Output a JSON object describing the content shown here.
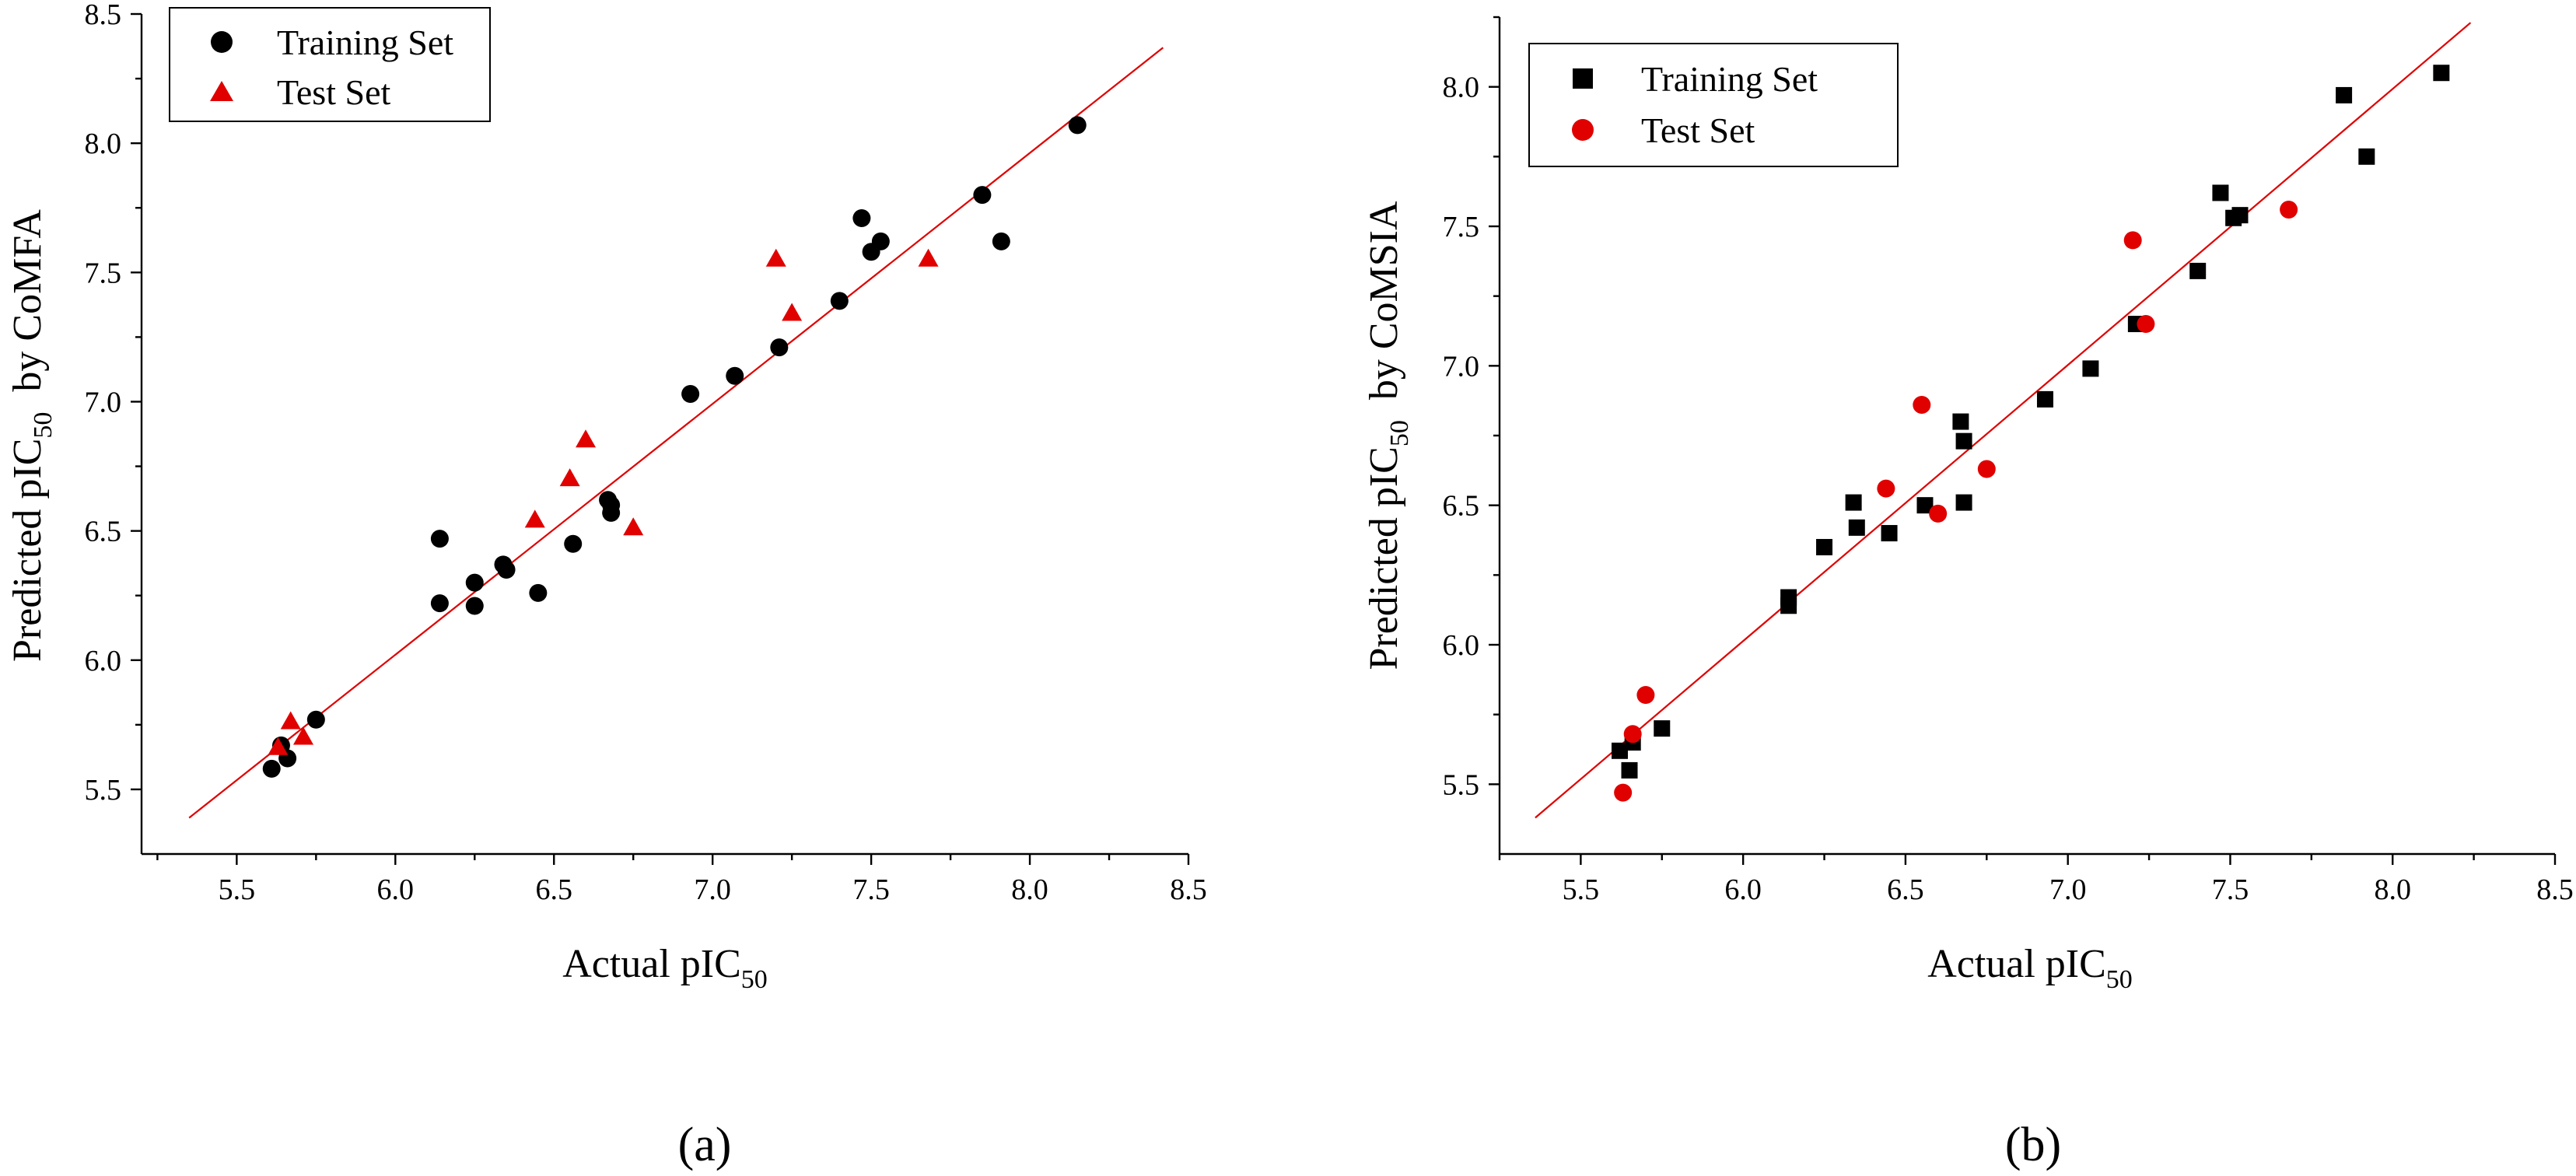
{
  "chart_data": [
    {
      "type": "scatter",
      "panel_label": "(a)",
      "xlabel": {
        "main": "Actual pIC",
        "sub": "50"
      },
      "ylabel": {
        "main": "Predicted pIC",
        "sub": "50",
        "suffix": "  by CoMFA"
      },
      "xlim": [
        5.2,
        8.5
      ],
      "ylim": [
        5.25,
        8.5
      ],
      "xticks": [
        "5.5",
        "6.0",
        "6.5",
        "7.0",
        "7.5",
        "8.0",
        "8.5"
      ],
      "yticks": [
        "5.5",
        "6.0",
        "6.5",
        "7.0",
        "7.5",
        "8.0",
        "8.5"
      ],
      "fit_line": {
        "x": [
          5.35,
          8.42
        ],
        "y": [
          5.39,
          8.37
        ],
        "color": "#e00000"
      },
      "legend_position": "top-left",
      "series": [
        {
          "name": "Training Set",
          "marker": "circle",
          "color": "#000000",
          "points": [
            [
              5.61,
              5.58
            ],
            [
              5.64,
              5.67
            ],
            [
              5.66,
              5.62
            ],
            [
              5.75,
              5.77
            ],
            [
              6.14,
              6.47
            ],
            [
              6.14,
              6.22
            ],
            [
              6.25,
              6.3
            ],
            [
              6.25,
              6.21
            ],
            [
              6.34,
              6.37
            ],
            [
              6.35,
              6.35
            ],
            [
              6.45,
              6.26
            ],
            [
              6.56,
              6.45
            ],
            [
              6.67,
              6.62
            ],
            [
              6.68,
              6.6
            ],
            [
              6.68,
              6.57
            ],
            [
              6.93,
              7.03
            ],
            [
              7.07,
              7.1
            ],
            [
              7.21,
              7.21
            ],
            [
              7.4,
              7.39
            ],
            [
              7.47,
              7.71
            ],
            [
              7.5,
              7.58
            ],
            [
              7.53,
              7.62
            ],
            [
              7.85,
              7.8
            ],
            [
              7.91,
              7.62
            ],
            [
              8.15,
              8.07
            ]
          ]
        },
        {
          "name": "Test Set",
          "marker": "triangle",
          "color": "#e00000",
          "points": [
            [
              5.63,
              5.66
            ],
            [
              5.67,
              5.76
            ],
            [
              5.71,
              5.7
            ],
            [
              6.44,
              6.54
            ],
            [
              6.55,
              6.7
            ],
            [
              6.6,
              6.85
            ],
            [
              6.75,
              6.51
            ],
            [
              7.2,
              7.55
            ],
            [
              7.25,
              7.34
            ],
            [
              7.68,
              7.55
            ]
          ]
        }
      ]
    },
    {
      "type": "scatter",
      "panel_label": "(b)",
      "xlabel": {
        "main": "Actual pIC",
        "sub": "50"
      },
      "ylabel": {
        "main": "Predicted pIC",
        "sub": "50",
        "suffix": "  by CoMSIA"
      },
      "xlim": [
        5.25,
        8.5
      ],
      "ylim": [
        5.25,
        8.25
      ],
      "xticks": [
        "5.5",
        "6.0",
        "6.5",
        "7.0",
        "7.5",
        "8.0",
        "8.5"
      ],
      "yticks": [
        "5.5",
        "6.0",
        "6.5",
        "7.0",
        "7.5",
        "8.0"
      ],
      "fit_line": {
        "x": [
          5.36,
          8.24
        ],
        "y": [
          5.38,
          8.23
        ],
        "color": "#e00000"
      },
      "legend_position": "top-left",
      "series": [
        {
          "name": "Training Set",
          "marker": "square",
          "color": "#000000",
          "points": [
            [
              5.62,
              5.62
            ],
            [
              5.65,
              5.55
            ],
            [
              5.66,
              5.65
            ],
            [
              5.75,
              5.7
            ],
            [
              6.14,
              6.17
            ],
            [
              6.14,
              6.14
            ],
            [
              6.25,
              6.35
            ],
            [
              6.34,
              6.51
            ],
            [
              6.35,
              6.42
            ],
            [
              6.45,
              6.4
            ],
            [
              6.56,
              6.5
            ],
            [
              6.67,
              6.8
            ],
            [
              6.68,
              6.73
            ],
            [
              6.68,
              6.51
            ],
            [
              6.93,
              6.88
            ],
            [
              7.07,
              6.99
            ],
            [
              7.21,
              7.15
            ],
            [
              7.4,
              7.34
            ],
            [
              7.47,
              7.62
            ],
            [
              7.51,
              7.53
            ],
            [
              7.53,
              7.54
            ],
            [
              7.85,
              7.97
            ],
            [
              7.92,
              7.75
            ],
            [
              8.15,
              8.05
            ]
          ]
        },
        {
          "name": "Test Set",
          "marker": "circle",
          "color": "#e00000",
          "points": [
            [
              5.63,
              5.47
            ],
            [
              5.66,
              5.68
            ],
            [
              5.7,
              5.82
            ],
            [
              6.44,
              6.56
            ],
            [
              6.55,
              6.86
            ],
            [
              6.6,
              6.47
            ],
            [
              6.75,
              6.63
            ],
            [
              7.2,
              7.45
            ],
            [
              7.24,
              7.15
            ],
            [
              7.68,
              7.56
            ]
          ]
        }
      ]
    }
  ]
}
